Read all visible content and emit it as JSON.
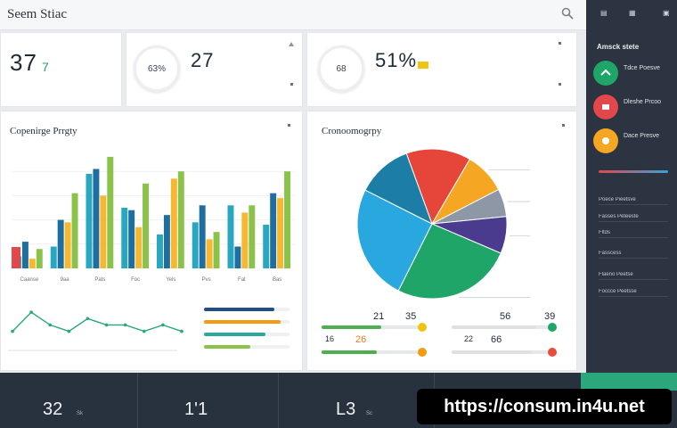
{
  "header": {
    "title": "Seem Stiac"
  },
  "kpis": [
    {
      "value": "37",
      "suffix": "7",
      "note": "",
      "sub": ""
    },
    {
      "value": "27",
      "ring": "63%",
      "unit": "",
      "sub": ""
    },
    {
      "value": "51%",
      "ring": "68",
      "sub": ""
    }
  ],
  "bar_panel": {
    "title": "Copenirge Prrgty"
  },
  "pie_panel": {
    "title": "Cronoomogrpy",
    "label_left": "21",
    "label_right": "35",
    "label_top_right": "56",
    "label_top_right2": "39",
    "row1_left": "16",
    "row1_val": "26",
    "row2_left": "22",
    "row2_val": "66"
  },
  "sidebar": {
    "heading": "Amsck stete",
    "items": [
      {
        "label": "Tdce Poesve",
        "sub": ""
      },
      {
        "label": "Dleshe Prcoo",
        "sub": ""
      },
      {
        "label": "Dace Presve",
        "sub": ""
      }
    ],
    "rows": [
      "Poece Pieetsve",
      "Fasses Peteeste",
      "Fltds",
      "Fasscess",
      "Flaeno Peetse",
      "Foccce Peetsse"
    ]
  },
  "bottom": [
    {
      "value": "32",
      "sub": "Sk"
    },
    {
      "value": "1'1",
      "sub": ""
    },
    {
      "value": "L3",
      "sub": "Sc"
    }
  ],
  "watermark": "https://consum.in4u.net",
  "chart_data": [
    {
      "type": "bar",
      "title": "Copenirge Prrgty",
      "categories": [
        "Caanse",
        "9aa",
        "Pats",
        "Foc",
        "Yels",
        "Pvs",
        "Fat",
        "Bas"
      ],
      "series": [
        {
          "name": "",
          "values": [
            10,
            18,
            78,
            50,
            28,
            38,
            52,
            36
          ]
        },
        {
          "name": "",
          "values": [
            22,
            40,
            82,
            48,
            44,
            52,
            18,
            62
          ]
        },
        {
          "name": "",
          "values": [
            8,
            38,
            60,
            34,
            74,
            24,
            46,
            58
          ]
        },
        {
          "name": "",
          "values": [
            16,
            62,
            92,
            70,
            80,
            30,
            52,
            80
          ]
        }
      ],
      "colors": [
        "#2aa7c0",
        "#1f6ea0",
        "#f7b731",
        "#8bc34a"
      ],
      "ylim": [
        0,
        100
      ]
    },
    {
      "type": "pie",
      "title": "Cronoomogrpy",
      "categories": [
        "Red",
        "Orange",
        "Gray",
        "Purple",
        "Green",
        "Blue",
        "Teal"
      ],
      "values": [
        14,
        9,
        6,
        8,
        26,
        25,
        12
      ],
      "colors": [
        "#e6463a",
        "#f5a623",
        "#8e97a6",
        "#4a3b8f",
        "#1fa568",
        "#29a7df",
        "#1c7ea6"
      ]
    },
    {
      "type": "line",
      "series": [
        {
          "name": "",
          "values": [
            3,
            6,
            4,
            3,
            5,
            4,
            4,
            3,
            4,
            3
          ]
        }
      ]
    }
  ],
  "progress": [
    {
      "color": "#1f4f8a",
      "value": 0.82
    },
    {
      "color": "#f39c12",
      "value": 0.9
    },
    {
      "color": "#2aa7a0",
      "value": 0.72
    },
    {
      "color": "#8bc34a",
      "value": 0.54
    }
  ],
  "pie_bars": [
    {
      "color": "#4caf50",
      "value": 0.6,
      "end": "#f1c40f"
    },
    {
      "color": "#e0e0e0",
      "value": 0.85,
      "end": "#1fa568"
    },
    {
      "color": "#4caf50",
      "value": 0.55,
      "end": "#f39c12"
    },
    {
      "color": "#e0e0e0",
      "value": 0.8,
      "end": "#e74c3c"
    }
  ]
}
